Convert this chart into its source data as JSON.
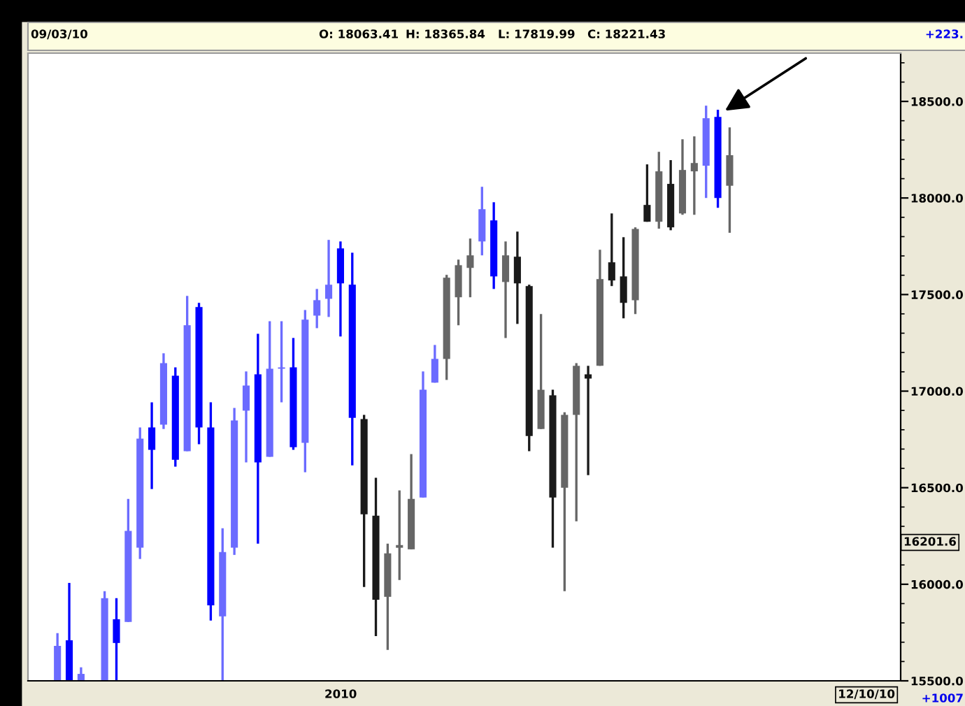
{
  "chart_data": {
    "type": "candlestick",
    "categories": [
      null,
      null,
      null,
      null,
      null,
      null,
      null,
      null,
      null,
      null,
      null,
      null,
      null,
      null,
      null,
      null,
      null,
      null,
      null,
      null,
      null,
      null,
      null,
      null,
      null,
      null,
      null,
      null,
      null,
      null,
      null,
      null,
      null,
      null,
      null,
      null,
      null,
      null,
      null,
      null,
      null,
      null,
      null,
      null,
      null,
      null,
      null,
      null,
      null,
      null,
      null,
      null,
      null,
      null,
      null,
      null,
      null,
      null,
      null,
      null,
      null,
      null,
      null,
      null,
      null,
      null,
      null,
      null,
      null,
      null,
      null,
      null,
      null,
      null
    ],
    "ohlc": [
      null,
      null,
      [
        15500,
        15747,
        15500,
        15681
      ],
      [
        15710,
        16007,
        15500,
        15500
      ],
      [
        15500,
        15570,
        15500,
        15536
      ],
      null,
      [
        15500,
        15964,
        15500,
        15928
      ],
      [
        15819,
        15928,
        15500,
        15696
      ],
      [
        15805,
        16442,
        15805,
        16276
      ],
      [
        16189,
        16812,
        16131,
        16754
      ],
      [
        16812,
        16942,
        16493,
        16696
      ],
      [
        16826,
        17196,
        16804,
        17145
      ],
      [
        17080,
        17123,
        16609,
        16645
      ],
      [
        16689,
        17493,
        16689,
        17341
      ],
      [
        17435,
        17457,
        16725,
        16812
      ],
      [
        16812,
        16942,
        15812,
        15891
      ],
      [
        15834,
        16290,
        15500,
        16167
      ],
      [
        16189,
        16913,
        16152,
        16848
      ],
      [
        16899,
        17102,
        16631,
        17029
      ],
      [
        17087,
        17297,
        16210,
        16631
      ],
      [
        16660,
        17362,
        16660,
        17116
      ],
      [
        17116,
        17362,
        16942,
        17123
      ],
      [
        17123,
        17275,
        16696,
        16710
      ],
      [
        16732,
        17420,
        16580,
        17370
      ],
      [
        17391,
        17529,
        17326,
        17471
      ],
      [
        17478,
        17783,
        17384,
        17551
      ],
      [
        17739,
        17775,
        17283,
        17558
      ],
      [
        17551,
        17717,
        16616,
        16862
      ],
      [
        16855,
        16877,
        15986,
        16362
      ],
      [
        16355,
        16551,
        15732,
        15920
      ],
      [
        15935,
        16210,
        15660,
        16160
      ],
      [
        16189,
        16486,
        16022,
        16203
      ],
      [
        16181,
        16674,
        16181,
        16442
      ],
      [
        16449,
        17102,
        16449,
        17007
      ],
      [
        17044,
        17239,
        17044,
        17167
      ],
      [
        17167,
        17602,
        17058,
        17587
      ],
      [
        17486,
        17681,
        17341,
        17652
      ],
      [
        17638,
        17790,
        17486,
        17703
      ],
      [
        17775,
        18058,
        17703,
        17942
      ],
      [
        17884,
        17978,
        17529,
        17594
      ],
      [
        17565,
        17775,
        17275,
        17703
      ],
      [
        17696,
        17826,
        17348,
        17558
      ],
      [
        17544,
        17551,
        16689,
        16768
      ],
      [
        16804,
        17399,
        16804,
        17007
      ],
      [
        16978,
        17007,
        16189,
        16449
      ],
      [
        16500,
        16891,
        15964,
        16877
      ],
      [
        16877,
        17145,
        16326,
        17131
      ],
      [
        17087,
        17131,
        16565,
        17065
      ],
      [
        17131,
        17732,
        17131,
        17580
      ],
      [
        17667,
        17920,
        17544,
        17573
      ],
      [
        17594,
        17797,
        17377,
        17457
      ],
      [
        17471,
        17848,
        17399,
        17840
      ],
      [
        17964,
        18174,
        17877,
        17877
      ],
      [
        17877,
        18239,
        17841,
        18138
      ],
      [
        18073,
        18196,
        17833,
        17848
      ],
      [
        17920,
        18304,
        17913,
        18145
      ],
      [
        18138,
        18319,
        17913,
        18181
      ],
      [
        18167,
        18478,
        18000,
        18413
      ],
      [
        18420,
        18457,
        17949,
        18000
      ],
      [
        18063.41,
        18365.84,
        17819.99,
        18221.43
      ],
      null,
      null,
      null,
      null,
      null,
      null,
      null,
      null,
      null,
      null,
      null,
      null,
      null,
      null
    ],
    "colors": [
      null,
      null,
      "#6b6bff",
      "#0000ff",
      "#6b6bff",
      null,
      "#6b6bff",
      "#0000ff",
      "#6b6bff",
      "#6b6bff",
      "#0000ff",
      "#6b6bff",
      "#0000ff",
      "#6b6bff",
      "#0000ff",
      "#0000ff",
      "#6b6bff",
      "#6b6bff",
      "#6b6bff",
      "#0000ff",
      "#6b6bff",
      "#6b6bff",
      "#0000ff",
      "#6b6bff",
      "#6b6bff",
      "#6b6bff",
      "#0000ff",
      "#0000ff",
      "#1a1a1a",
      "#1a1a1a",
      "#666666",
      "#666666",
      "#666666",
      "#6b6bff",
      "#6b6bff",
      "#666666",
      "#666666",
      "#666666",
      "#6b6bff",
      "#0000ff",
      "#666666",
      "#1a1a1a",
      "#1a1a1a",
      "#666666",
      "#1a1a1a",
      "#666666",
      "#666666",
      "#1a1a1a",
      "#666666",
      "#1a1a1a",
      "#1a1a1a",
      "#666666",
      "#1a1a1a",
      "#666666",
      "#1a1a1a",
      "#666666",
      "#666666",
      "#6b6bff",
      "#0000ff",
      "#666666",
      null,
      null,
      null,
      null,
      null,
      null,
      null,
      null,
      null,
      null,
      null,
      null,
      null,
      null
    ],
    "ylim": [
      15500,
      18750
    ],
    "yticks": [
      {
        "value": 15500,
        "label": "15500.0"
      },
      {
        "value": 16000,
        "label": "16000.0"
      },
      {
        "value": 16500,
        "label": "16500.0"
      },
      {
        "value": 17000,
        "label": "17000.0"
      },
      {
        "value": 17500,
        "label": "17500.0"
      },
      {
        "value": 18000,
        "label": "18000.0"
      },
      {
        "value": 18500,
        "label": "18500.0"
      }
    ],
    "grid": false,
    "legend": false,
    "annotations": [
      "09/03/10",
      "O: 18063.41",
      "H: 18365.84",
      "L: 17819.99",
      "C: 18221.43",
      "+223.",
      "+1007",
      "16201.6",
      "12/10/10",
      "2010"
    ]
  }
}
